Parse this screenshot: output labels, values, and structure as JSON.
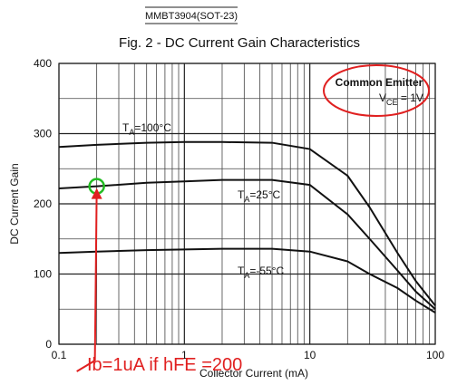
{
  "header": "MMBT3904(SOT-23)",
  "chart_data": {
    "type": "line",
    "title": "Fig. 2 - DC Current Gain Characteristics",
    "x_label": "Collector Current (mA)",
    "y_label": "DC Current Gain",
    "x": [
      0.1,
      0.2,
      0.5,
      1,
      2,
      5,
      10,
      20,
      30,
      50,
      70,
      100
    ],
    "series": [
      {
        "name": {
          "main": "T",
          "sub": "A",
          "rest": "=100°C"
        },
        "color": "#111111",
        "values": [
          281,
          284,
          287,
          288,
          288,
          287,
          278,
          240,
          195,
          130,
          90,
          55
        ]
      },
      {
        "name": {
          "main": "T",
          "sub": "A",
          "rest": "=25°C"
        },
        "color": "#111111",
        "values": [
          222,
          225,
          230,
          232,
          234,
          234,
          227,
          185,
          150,
          105,
          75,
          50
        ]
      },
      {
        "name": {
          "main": "T",
          "sub": "A",
          "rest": "=-55°C"
        },
        "color": "#111111",
        "values": [
          130,
          132,
          134,
          135,
          136,
          136,
          132,
          118,
          100,
          80,
          62,
          45
        ]
      }
    ],
    "xlim": [
      0.1,
      100
    ],
    "xticks": [
      0.1,
      1,
      10,
      100
    ],
    "xlog": true,
    "xminorticks": [
      0.2,
      0.3,
      0.4,
      0.5,
      0.6,
      0.7,
      0.8,
      0.9,
      2,
      3,
      4,
      5,
      6,
      7,
      8,
      9,
      20,
      30,
      40,
      50,
      60,
      70,
      80,
      90
    ],
    "ylim": [
      0,
      400
    ],
    "yticks": [
      0,
      100,
      200,
      300,
      400
    ],
    "yminorticks": [
      50,
      150,
      250,
      350
    ],
    "grid": true,
    "condition": {
      "line1": "Common Emitter",
      "main": "V",
      "sub": "CE",
      "rest": " = 1V"
    },
    "highlight": {
      "x": 0.2,
      "y": 225,
      "text": "Ib=1uA if hFE =200",
      "color": "#e02020"
    }
  }
}
